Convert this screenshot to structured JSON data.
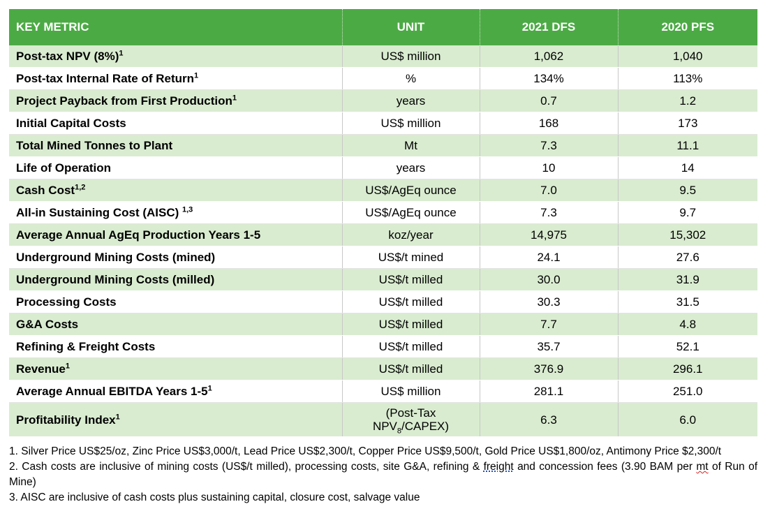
{
  "table": {
    "headers": [
      "KEY METRIC",
      "UNIT",
      "2021 DFS",
      "2020 PFS"
    ],
    "rows": [
      {
        "metric": "Post-tax NPV (8%)",
        "sup": "1",
        "unit": "US$ million",
        "dfs2021": "1,062",
        "pfs2020": "1,040"
      },
      {
        "metric": "Post-tax Internal Rate of Return",
        "sup": "1",
        "unit": "%",
        "dfs2021": "134%",
        "pfs2020": "113%"
      },
      {
        "metric": "Project Payback from First Production",
        "sup": "1",
        "unit": "years",
        "dfs2021": "0.7",
        "pfs2020": "1.2"
      },
      {
        "metric": "Initial Capital Costs",
        "sup": "",
        "unit": "US$ million",
        "dfs2021": "168",
        "pfs2020": "173"
      },
      {
        "metric": "Total Mined Tonnes to Plant",
        "sup": "",
        "unit": "Mt",
        "dfs2021": "7.3",
        "pfs2020": "11.1"
      },
      {
        "metric": "Life of Operation",
        "sup": "",
        "unit": "years",
        "dfs2021": "10",
        "pfs2020": "14"
      },
      {
        "metric": "Cash Cost",
        "sup": "1,2",
        "unit": "US$/AgEq ounce",
        "dfs2021": "7.0",
        "pfs2020": "9.5"
      },
      {
        "metric": "All-in Sustaining Cost (AISC) ",
        "sup": "1,3",
        "unit": "US$/AgEq ounce",
        "dfs2021": "7.3",
        "pfs2020": "9.7"
      },
      {
        "metric": "Average Annual AgEq Production Years 1-5",
        "sup": "",
        "unit": "koz/year",
        "dfs2021": "14,975",
        "pfs2020": "15,302"
      },
      {
        "metric": "Underground Mining Costs (mined)",
        "sup": "",
        "unit": "US$/t mined",
        "dfs2021": "24.1",
        "pfs2020": "27.6"
      },
      {
        "metric": "Underground Mining Costs (milled)",
        "sup": "",
        "unit": "US$/t milled",
        "dfs2021": "30.0",
        "pfs2020": "31.9"
      },
      {
        "metric": "Processing Costs",
        "sup": "",
        "unit": "US$/t milled",
        "dfs2021": "30.3",
        "pfs2020": "31.5"
      },
      {
        "metric": "G&A Costs",
        "sup": "",
        "unit": "US$/t milled",
        "dfs2021": "7.7",
        "pfs2020": "4.8"
      },
      {
        "metric": "Refining & Freight Costs",
        "sup": "",
        "unit": "US$/t milled",
        "dfs2021": "35.7",
        "pfs2020": "52.1"
      },
      {
        "metric": "Revenue",
        "sup": "1",
        "unit": "US$/t milled",
        "dfs2021": "376.9",
        "pfs2020": "296.1"
      },
      {
        "metric": "Average Annual EBITDA Years 1-5",
        "sup": "1",
        "unit": "US$ million",
        "dfs2021": "281.1",
        "pfs2020": "251.0"
      }
    ],
    "last_row": {
      "metric": "Profitability Index",
      "sup": "1",
      "unit_line1": "(Post-Tax",
      "unit_line2_pre": "NPV",
      "unit_line2_sub": "8",
      "unit_line2_post": "/CAPEX)",
      "dfs2021": "6.3",
      "pfs2020": "6.0"
    }
  },
  "notes": {
    "note1": "1. Silver Price US$25/oz, Zinc Price US$3,000/t, Lead Price US$2,300/t, Copper Price US$9,500/t, Gold Price US$1,800/oz, Antimony Price $2,300/t",
    "note2_a": "2. Cash costs are inclusive of mining costs (US$/t milled), processing costs, site G&A, refining & ",
    "note2_freight": "freight",
    "note2_b": " and concession fees (3.90 BAM per ",
    "note2_mt": "mt",
    "note2_c": " of Run of Mine)",
    "note3": "3. AISC are inclusive of cash costs plus sustaining capital, closure cost, salvage value"
  }
}
